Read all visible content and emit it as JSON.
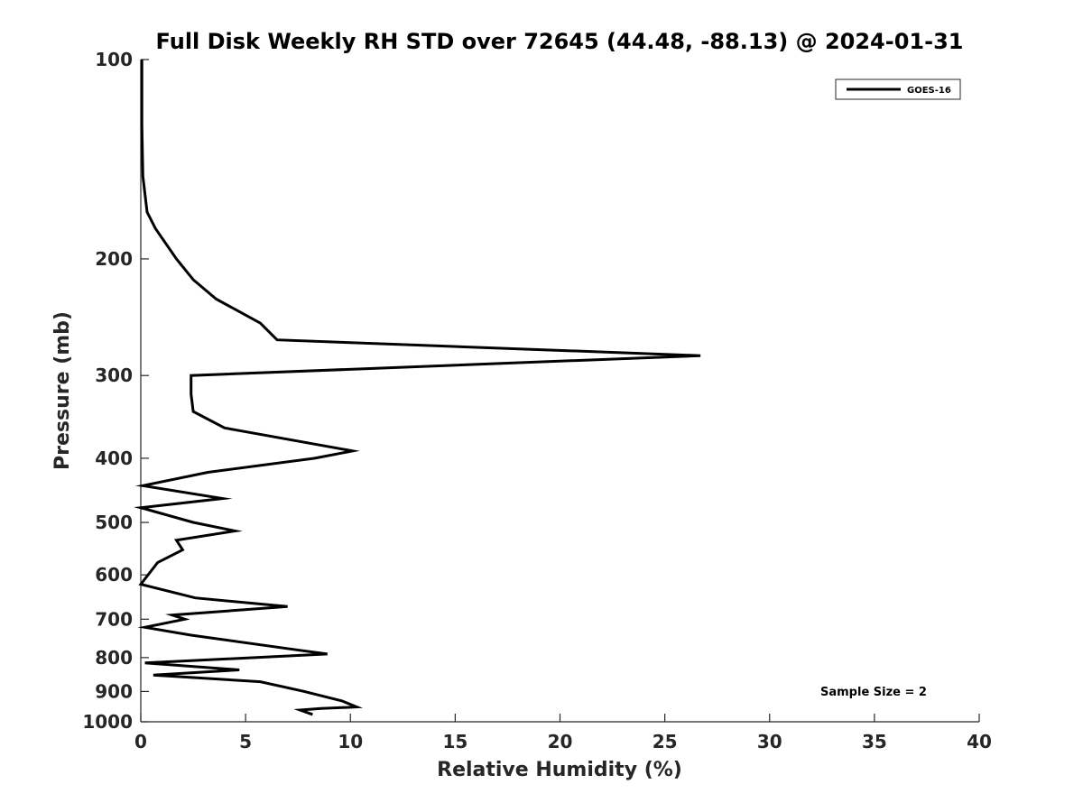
{
  "chart_data": {
    "type": "line",
    "title": "Full Disk Weekly RH STD over 72645 (44.48, -88.13) @ 2024-01-31",
    "xlabel": "Relative Humidity (%)",
    "ylabel": "Pressure (mb)",
    "xlim": [
      0,
      40
    ],
    "ylim": [
      100,
      1000
    ],
    "y_scale": "log",
    "y_reversed": true,
    "grid": false,
    "x_ticks": [
      0,
      5,
      10,
      15,
      20,
      25,
      30,
      35,
      40
    ],
    "y_ticks": [
      100,
      200,
      300,
      400,
      500,
      600,
      700,
      800,
      900,
      1000
    ],
    "legend_position": "top-right",
    "annotation": "Sample Size = 2",
    "series": [
      {
        "name": "GOES-16",
        "color": "#000000",
        "points": [
          [
            0.05,
            100
          ],
          [
            0.05,
            115
          ],
          [
            0.05,
            125
          ],
          [
            0.1,
            150
          ],
          [
            0.3,
            170
          ],
          [
            0.7,
            180
          ],
          [
            1.7,
            200
          ],
          [
            2.5,
            215
          ],
          [
            3.6,
            230
          ],
          [
            5.7,
            250
          ],
          [
            6.5,
            265
          ],
          [
            26.7,
            280
          ],
          [
            2.4,
            300
          ],
          [
            2.4,
            320
          ],
          [
            2.5,
            340
          ],
          [
            4.0,
            360
          ],
          [
            10.1,
            390
          ],
          [
            8.3,
            400
          ],
          [
            3.2,
            420
          ],
          [
            0.1,
            440
          ],
          [
            3.9,
            460
          ],
          [
            0.0,
            475
          ],
          [
            2.5,
            500
          ],
          [
            4.5,
            515
          ],
          [
            1.7,
            532
          ],
          [
            2.0,
            550
          ],
          [
            0.8,
            575
          ],
          [
            0.0,
            620
          ],
          [
            2.6,
            650
          ],
          [
            7.0,
            670
          ],
          [
            1.5,
            690
          ],
          [
            2.1,
            700
          ],
          [
            0.2,
            720
          ],
          [
            2.4,
            740
          ],
          [
            7.6,
            780
          ],
          [
            8.9,
            790
          ],
          [
            0.2,
            815
          ],
          [
            4.7,
            835
          ],
          [
            0.6,
            850
          ],
          [
            5.7,
            870
          ],
          [
            7.8,
            900
          ],
          [
            9.6,
            930
          ],
          [
            10.3,
            950
          ],
          [
            8.6,
            955
          ],
          [
            7.6,
            960
          ],
          [
            8.2,
            975
          ]
        ]
      }
    ]
  }
}
